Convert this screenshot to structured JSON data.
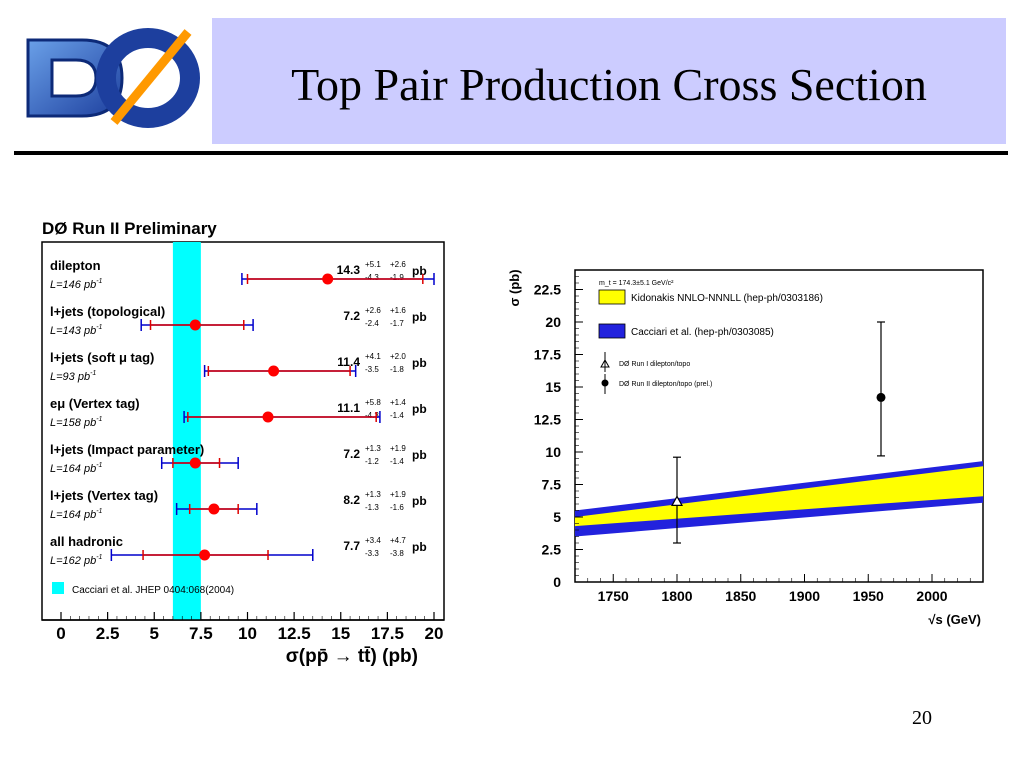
{
  "slide": {
    "title": "Top Pair Production Cross Section",
    "number": "20",
    "logo_text": "DØ"
  },
  "chart_data": [
    {
      "type": "scatter",
      "title": "DØ Run II Preliminary",
      "xlabel": "σ(pp̄ → tt̄) (pb)",
      "xlim": [
        0,
        20
      ],
      "xticks": [
        "0",
        "2.5",
        "5",
        "7.5",
        "10",
        "12.5",
        "15",
        "17.5",
        "20"
      ],
      "theory_band": {
        "label": "Cacciari et al. JHEP 0404:068(2004)",
        "range": [
          6.0,
          7.5
        ],
        "color": "#00ffff"
      },
      "measurements": [
        {
          "channel": "dilepton",
          "lumi": "L=146 pb",
          "value": 14.3,
          "value_text": "14.3",
          "stat_up": "+5.1",
          "stat_dn": "-4.3",
          "sys_up": "+2.6",
          "sys_dn": "-1.9",
          "stat_lo": 10.0,
          "stat_hi": 19.4,
          "tot_lo": 9.7,
          "tot_hi": 20.0
        },
        {
          "channel": "l+jets (topological)",
          "lumi": "L=143 pb",
          "value": 7.2,
          "value_text": "7.2",
          "stat_up": "+2.6",
          "stat_dn": "-2.4",
          "sys_up": "+1.6",
          "sys_dn": "-1.7",
          "stat_lo": 4.8,
          "stat_hi": 9.8,
          "tot_lo": 4.3,
          "tot_hi": 10.3
        },
        {
          "channel": "l+jets (soft μ tag)",
          "lumi": "L=93 pb",
          "value": 11.4,
          "value_text": "11.4",
          "stat_up": "+4.1",
          "stat_dn": "-3.5",
          "sys_up": "+2.0",
          "sys_dn": "-1.8",
          "stat_lo": 7.9,
          "stat_hi": 15.5,
          "tot_lo": 7.7,
          "tot_hi": 15.8
        },
        {
          "channel": "eμ (Vertex tag)",
          "lumi": "L=158 pb",
          "value": 11.1,
          "value_text": "11.1",
          "stat_up": "+5.8",
          "stat_dn": "-4.3",
          "sys_up": "+1.4",
          "sys_dn": "-1.4",
          "stat_lo": 6.8,
          "stat_hi": 16.9,
          "tot_lo": 6.6,
          "tot_hi": 17.1
        },
        {
          "channel": "l+jets (Impact parameter)",
          "lumi": "L=164 pb",
          "value": 7.2,
          "value_text": "7.2",
          "stat_up": "+1.3",
          "stat_dn": "-1.2",
          "sys_up": "+1.9",
          "sys_dn": "-1.4",
          "stat_lo": 6.0,
          "stat_hi": 8.5,
          "tot_lo": 5.4,
          "tot_hi": 9.5
        },
        {
          "channel": "l+jets (Vertex tag)",
          "lumi": "L=164 pb",
          "value": 8.2,
          "value_text": "8.2",
          "stat_up": "+1.3",
          "stat_dn": "-1.3",
          "sys_up": "+1.9",
          "sys_dn": "-1.6",
          "stat_lo": 6.9,
          "stat_hi": 9.5,
          "tot_lo": 6.2,
          "tot_hi": 10.5
        },
        {
          "channel": "all hadronic",
          "lumi": "L=162 pb",
          "value": 7.7,
          "value_text": "7.7",
          "stat_up": "+3.4",
          "stat_dn": "-3.3",
          "sys_up": "+4.7",
          "sys_dn": "-3.8",
          "stat_lo": 4.4,
          "stat_hi": 11.1,
          "tot_lo": 2.7,
          "tot_hi": 13.5
        }
      ],
      "colors": {
        "stat": "#dd0000",
        "total": "#0000cc",
        "point": "#ff0000"
      }
    },
    {
      "type": "line",
      "ylabel": "σ (pb)",
      "xlabel": "√s (GeV)",
      "xlim": [
        1720,
        2040
      ],
      "ylim": [
        0,
        24
      ],
      "xticks": [
        1750,
        1800,
        1850,
        1900,
        1950,
        2000
      ],
      "yticks": [
        0,
        2.5,
        5,
        7.5,
        10,
        12.5,
        15,
        17.5,
        20,
        22.5
      ],
      "mass_note": "m_t = 174.3±5.1 GeV/c²",
      "legend": [
        {
          "label": "Kidonakis NNLO-NNNLL (hep-ph/0303186)",
          "style": "yellow-box"
        },
        {
          "label": "Cacciari et al. (hep-ph/0303085)",
          "style": "blue-box"
        },
        {
          "label": "DØ Run I dilepton/topo",
          "style": "triangle"
        },
        {
          "label": "DØ Run II dilepton/topo (prel.)",
          "style": "circle"
        }
      ],
      "bands": {
        "kidonakis": {
          "x": [
            1720,
            2040
          ],
          "lower": [
            4.3,
            6.6
          ],
          "upper": [
            5.0,
            8.9
          ],
          "color": "#ffff00"
        },
        "cacciari": {
          "x": [
            1720,
            2040
          ],
          "lower": [
            3.5,
            6.1
          ],
          "upper": [
            5.5,
            9.3
          ],
          "color": "#2222dd"
        }
      },
      "points": [
        {
          "series": "Run I",
          "x": 1800,
          "y": 6.2,
          "y_lo": 3.0,
          "y_hi": 9.6,
          "marker": "triangle"
        },
        {
          "series": "Run II",
          "x": 1960,
          "y": 14.2,
          "y_lo": 9.7,
          "y_hi": 20.0,
          "marker": "circle"
        }
      ]
    }
  ]
}
